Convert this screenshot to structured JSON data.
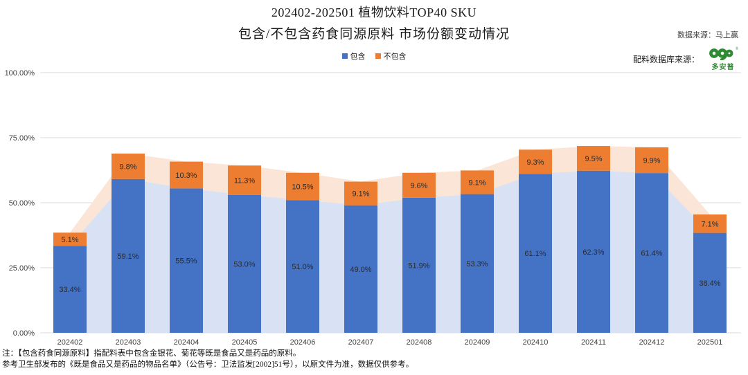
{
  "header": {
    "title_line1": "202402-202501 植物饮料TOP40 SKU",
    "title_line2": "包含/不包含药食同源原料 市场份额变动情况",
    "data_source": "数据来源：马上赢",
    "ingredient_source_label": "配料数据库来源：",
    "logo_name": "多安普",
    "logo_registered": "®",
    "logo_color": "#2e8b33"
  },
  "legend": {
    "items": [
      {
        "label": "包含",
        "color": "#4472C4"
      },
      {
        "label": "不包含",
        "color": "#ED7D31"
      }
    ]
  },
  "chart_data": {
    "type": "bar",
    "subtype": "stacked-bars-with-light-area-bands",
    "title": "202402-202501 植物饮料TOP40 SKU 包含/不包含药食同源原料 市场份额变动情况",
    "categories": [
      "202402",
      "202403",
      "202404",
      "202405",
      "202406",
      "202407",
      "202408",
      "202409",
      "202410",
      "202411",
      "202412",
      "202501"
    ],
    "series": [
      {
        "name": "包含",
        "values": [
          33.4,
          59.1,
          55.5,
          53.0,
          51.0,
          49.0,
          51.9,
          53.3,
          61.1,
          62.3,
          61.4,
          38.4
        ],
        "color": "#4472C4",
        "band_color": "#D9E1F5"
      },
      {
        "name": "不包含",
        "values": [
          5.1,
          9.8,
          10.3,
          11.3,
          10.5,
          9.1,
          9.6,
          9.1,
          9.3,
          9.5,
          9.9,
          7.1
        ],
        "color": "#ED7D31",
        "band_color": "#FBE5D6"
      }
    ],
    "xlabel": "",
    "ylabel": "",
    "ylim": [
      0,
      100
    ],
    "yticks": [
      0,
      25,
      50,
      75,
      100
    ],
    "ytick_suffix": "%",
    "grid": true,
    "grid_color": "#D9D9D9",
    "label_color": "#2b2b2b",
    "axis_text_color": "#404040",
    "legend_position": "top"
  },
  "footnotes": [
    "注：【包含药食同源原料】指配料表中包含金银花、菊花等既是食品又是药品的原料。",
    "参考卫生部发布的《既是食品又是药品的物品名单》（公告号：卫法监发[2002]51号），以原文件为准，数据仅供参考。"
  ]
}
